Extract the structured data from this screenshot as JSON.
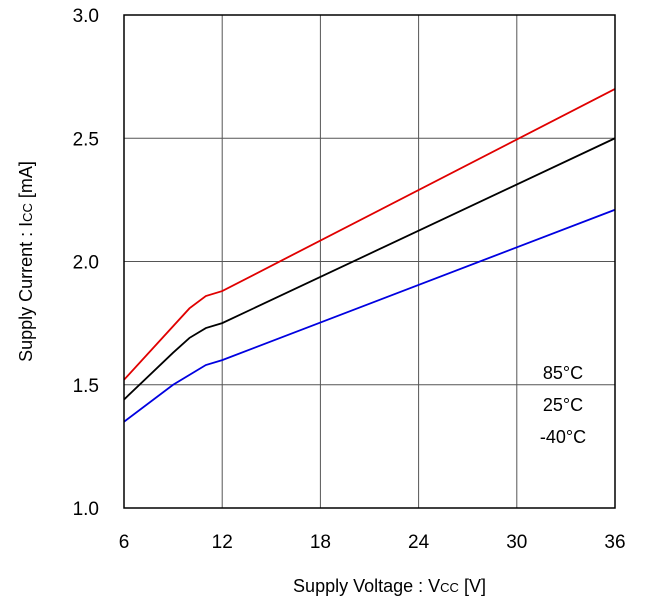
{
  "chart_data": {
    "type": "line",
    "title": "",
    "xlabel": "Supply Voltage : V",
    "xlabel_sub": "CC",
    "xlabel_unit": " [V]",
    "ylabel": "Supply Current : I",
    "ylabel_sub": "CC",
    "ylabel_unit": " [mA]",
    "xlim": [
      6,
      36
    ],
    "ylim": [
      1.0,
      3.0
    ],
    "x_ticks": [
      6,
      12,
      18,
      24,
      30,
      36
    ],
    "x_tick_labels": [
      "6",
      "12",
      "18",
      "24",
      "30",
      "36"
    ],
    "y_ticks": [
      1.0,
      1.5,
      2.0,
      2.5,
      3.0
    ],
    "y_tick_labels": [
      "1.0",
      "1.5",
      "2.0",
      "2.5",
      "3.0"
    ],
    "grid": true,
    "series": [
      {
        "color": "#e00000",
        "x": [
          6,
          10,
          11,
          12,
          36
        ],
        "y": [
          1.52,
          1.81,
          1.86,
          1.88,
          2.7
        ]
      },
      {
        "color": "#000000",
        "x": [
          6,
          9,
          10,
          11,
          12,
          36
        ],
        "y": [
          1.44,
          1.63,
          1.69,
          1.73,
          1.75,
          2.5
        ]
      },
      {
        "color": "#0000e0",
        "x": [
          6,
          9,
          11,
          12,
          36
        ],
        "y": [
          1.35,
          1.5,
          1.58,
          1.6,
          2.21
        ]
      }
    ],
    "annotations": [
      "85°C",
      "25°C",
      "-40°C"
    ]
  }
}
